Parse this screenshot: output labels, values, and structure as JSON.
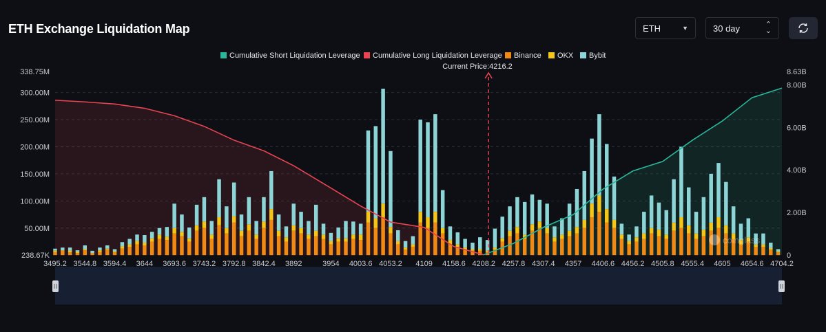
{
  "header": {
    "title": "ETH Exchange Liquidation Map",
    "coin_select": "ETH",
    "period_select": "30 day"
  },
  "icons": {
    "coin_caret": "chevron-down-icon",
    "period_caret": "sort-updown-icon",
    "refresh": "refresh-icon"
  },
  "colors": {
    "background": "#0d0f14",
    "short": "#2bb79a",
    "long": "#e84452",
    "binance": "#f08a14",
    "okx": "#f5c518",
    "bybit": "#8cd4d6"
  },
  "watermark": "coinglass",
  "chart_data": {
    "type": "bar",
    "title": "ETH Exchange Liquidation Map",
    "legend": [
      "Cumulative Short Liquidation Leverage",
      "Cumulative Long Liquidation Leverage",
      "Binance",
      "OKX",
      "Bybit"
    ],
    "current_price_label": "Current Price:4216.2",
    "current_price": 4216.2,
    "x_range": [
      3495.2,
      4704.2
    ],
    "x_ticks": [
      "3495.2",
      "3544.8",
      "3594.4",
      "3644",
      "3693.6",
      "3743.2",
      "3792.8",
      "3842.4",
      "3892",
      "3954",
      "4003.6",
      "4053.2",
      "4109",
      "4158.6",
      "4208.2",
      "4257.8",
      "4307.4",
      "4357",
      "4406.6",
      "4456.2",
      "4505.8",
      "4555.4",
      "4605",
      "4654.6",
      "4704.2"
    ],
    "y_left_ticks": [
      "238.67K",
      "50.00M",
      "100.00M",
      "150.00M",
      "200.00M",
      "250.00M",
      "300.00M",
      "338.75M"
    ],
    "y_left_values": [
      0.23867,
      50,
      100,
      150,
      200,
      250,
      300,
      338.75
    ],
    "y_left_range": [
      0.23867,
      338.75
    ],
    "y_right_ticks": [
      "0",
      "2.00B",
      "4.00B",
      "6.00B",
      "8.00B",
      "8.63B"
    ],
    "y_right_values": [
      0,
      2,
      4,
      6,
      8,
      8.63
    ],
    "y_right_range": [
      0,
      8.63
    ],
    "cumulative_long": {
      "x": [
        3495.2,
        3544.8,
        3594.4,
        3644,
        3693.6,
        3743.2,
        3792.8,
        3842.4,
        3892,
        3954,
        4003.6,
        4053.2,
        4109,
        4158.6,
        4208.2
      ],
      "y": [
        7.28,
        7.2,
        7.1,
        6.9,
        6.55,
        6.05,
        5.4,
        4.9,
        4.2,
        3.15,
        2.3,
        1.55,
        1.3,
        0.4,
        0.01
      ]
    },
    "cumulative_short": {
      "x": [
        4208.2,
        4257.8,
        4307.4,
        4357,
        4406.6,
        4456.2,
        4505.8,
        4555.4,
        4605,
        4654.6,
        4704.2
      ],
      "y": [
        0.01,
        0.55,
        1.3,
        1.9,
        3.1,
        3.95,
        4.4,
        5.4,
        6.3,
        7.4,
        7.85
      ]
    },
    "bars": [
      {
        "x": 3495.2,
        "binance": 6,
        "okx": 2,
        "bybit": 4
      },
      {
        "x": 3507.6,
        "binance": 8,
        "okx": 1,
        "bybit": 5
      },
      {
        "x": 3520,
        "binance": 5,
        "okx": 3,
        "bybit": 6
      },
      {
        "x": 3532.4,
        "binance": 4,
        "okx": 2,
        "bybit": 3
      },
      {
        "x": 3544.8,
        "binance": 9,
        "okx": 2,
        "bybit": 7
      },
      {
        "x": 3557.2,
        "binance": 3,
        "okx": 1,
        "bybit": 4
      },
      {
        "x": 3569.6,
        "binance": 6,
        "okx": 3,
        "bybit": 5
      },
      {
        "x": 3582,
        "binance": 10,
        "okx": 2,
        "bybit": 6
      },
      {
        "x": 3594.4,
        "binance": 5,
        "okx": 2,
        "bybit": 4
      },
      {
        "x": 3606.8,
        "binance": 12,
        "okx": 4,
        "bybit": 8
      },
      {
        "x": 3619.2,
        "binance": 15,
        "okx": 5,
        "bybit": 10
      },
      {
        "x": 3631.6,
        "binance": 20,
        "okx": 6,
        "bybit": 12
      },
      {
        "x": 3644,
        "binance": 18,
        "okx": 5,
        "bybit": 14
      },
      {
        "x": 3656.4,
        "binance": 25,
        "okx": 6,
        "bybit": 12
      },
      {
        "x": 3668.8,
        "binance": 30,
        "okx": 8,
        "bybit": 12
      },
      {
        "x": 3681.2,
        "binance": 28,
        "okx": 6,
        "bybit": 18
      },
      {
        "x": 3693.6,
        "binance": 40,
        "okx": 10,
        "bybit": 45
      },
      {
        "x": 3706,
        "binance": 35,
        "okx": 8,
        "bybit": 32
      },
      {
        "x": 3718.4,
        "binance": 25,
        "okx": 6,
        "bybit": 20
      },
      {
        "x": 3730.8,
        "binance": 45,
        "okx": 10,
        "bybit": 38
      },
      {
        "x": 3743.2,
        "binance": 50,
        "okx": 12,
        "bybit": 45
      },
      {
        "x": 3755.6,
        "binance": 30,
        "okx": 8,
        "bybit": 25
      },
      {
        "x": 3768,
        "binance": 55,
        "okx": 15,
        "bybit": 70
      },
      {
        "x": 3780.4,
        "binance": 40,
        "okx": 10,
        "bybit": 40
      },
      {
        "x": 3792.8,
        "binance": 60,
        "okx": 12,
        "bybit": 62
      },
      {
        "x": 3805.2,
        "binance": 35,
        "okx": 10,
        "bybit": 30
      },
      {
        "x": 3817.6,
        "binance": 45,
        "okx": 12,
        "bybit": 50
      },
      {
        "x": 3830,
        "binance": 30,
        "okx": 8,
        "bybit": 25
      },
      {
        "x": 3842.4,
        "binance": 50,
        "okx": 12,
        "bybit": 45
      },
      {
        "x": 3854.8,
        "binance": 65,
        "okx": 20,
        "bybit": 70
      },
      {
        "x": 3867.2,
        "binance": 35,
        "okx": 10,
        "bybit": 30
      },
      {
        "x": 3879.6,
        "binance": 25,
        "okx": 8,
        "bybit": 20
      },
      {
        "x": 3892,
        "binance": 45,
        "okx": 10,
        "bybit": 40
      },
      {
        "x": 3904.4,
        "binance": 40,
        "okx": 10,
        "bybit": 30
      },
      {
        "x": 3916.8,
        "binance": 30,
        "okx": 8,
        "bybit": 25
      },
      {
        "x": 3929.2,
        "binance": 35,
        "okx": 10,
        "bybit": 48
      },
      {
        "x": 3941.6,
        "binance": 30,
        "okx": 8,
        "bybit": 20
      },
      {
        "x": 3954,
        "binance": 20,
        "okx": 6,
        "bybit": 15
      },
      {
        "x": 3966.4,
        "binance": 25,
        "okx": 6,
        "bybit": 20
      },
      {
        "x": 3978.8,
        "binance": 25,
        "okx": 6,
        "bybit": 32
      },
      {
        "x": 3991.2,
        "binance": 30,
        "okx": 8,
        "bybit": 24
      },
      {
        "x": 4003.6,
        "binance": 28,
        "okx": 10,
        "bybit": 20
      },
      {
        "x": 4016,
        "binance": 60,
        "okx": 20,
        "bybit": 150
      },
      {
        "x": 4028.4,
        "binance": 50,
        "okx": 18,
        "bybit": 170
      },
      {
        "x": 4040.8,
        "binance": 70,
        "okx": 25,
        "bybit": 212
      },
      {
        "x": 4053.2,
        "binance": 40,
        "okx": 12,
        "bybit": 140
      },
      {
        "x": 4065.6,
        "binance": 20,
        "okx": 6,
        "bybit": 20
      },
      {
        "x": 4078,
        "binance": 10,
        "okx": 4,
        "bybit": 12
      },
      {
        "x": 4090.4,
        "binance": 15,
        "okx": 5,
        "bybit": 15
      },
      {
        "x": 4102.8,
        "binance": 60,
        "okx": 20,
        "bybit": 170
      },
      {
        "x": 4115.2,
        "binance": 50,
        "okx": 20,
        "bybit": 175
      },
      {
        "x": 4127.6,
        "binance": 60,
        "okx": 20,
        "bybit": 180
      },
      {
        "x": 4140,
        "binance": 40,
        "okx": 10,
        "bybit": 70
      },
      {
        "x": 4152.4,
        "binance": 20,
        "okx": 8,
        "bybit": 25
      },
      {
        "x": 4164.8,
        "binance": 15,
        "okx": 5,
        "bybit": 22
      },
      {
        "x": 4177.2,
        "binance": 10,
        "okx": 4,
        "bybit": 16
      },
      {
        "x": 4189.6,
        "binance": 8,
        "okx": 3,
        "bybit": 12
      },
      {
        "x": 4202,
        "binance": 8,
        "okx": 3,
        "bybit": 22
      },
      {
        "x": 4214.4,
        "binance": 6,
        "okx": 2,
        "bybit": 20
      },
      {
        "x": 4226.8,
        "binance": 10,
        "okx": 4,
        "bybit": 35
      },
      {
        "x": 4239.2,
        "binance": 25,
        "okx": 6,
        "bybit": 40
      },
      {
        "x": 4251.6,
        "binance": 35,
        "okx": 10,
        "bybit": 45
      },
      {
        "x": 4264,
        "binance": 40,
        "okx": 12,
        "bybit": 55
      },
      {
        "x": 4276.4,
        "binance": 30,
        "okx": 8,
        "bybit": 60
      },
      {
        "x": 4288.8,
        "binance": 45,
        "okx": 12,
        "bybit": 55
      },
      {
        "x": 4301.2,
        "binance": 50,
        "okx": 12,
        "bybit": 40
      },
      {
        "x": 4313.6,
        "binance": 40,
        "okx": 10,
        "bybit": 45
      },
      {
        "x": 4326,
        "binance": 25,
        "okx": 8,
        "bybit": 20
      },
      {
        "x": 4338.4,
        "binance": 30,
        "okx": 8,
        "bybit": 30
      },
      {
        "x": 4350.8,
        "binance": 35,
        "okx": 10,
        "bybit": 50
      },
      {
        "x": 4363.2,
        "binance": 40,
        "okx": 12,
        "bybit": 70
      },
      {
        "x": 4375.6,
        "binance": 50,
        "okx": 15,
        "bybit": 90
      },
      {
        "x": 4388,
        "binance": 70,
        "okx": 25,
        "bybit": 120
      },
      {
        "x": 4400.4,
        "binance": 80,
        "okx": 30,
        "bybit": 150
      },
      {
        "x": 4412.8,
        "binance": 60,
        "okx": 25,
        "bybit": 120
      },
      {
        "x": 4425.2,
        "binance": 50,
        "okx": 15,
        "bybit": 80
      },
      {
        "x": 4437.6,
        "binance": 30,
        "okx": 8,
        "bybit": 20
      },
      {
        "x": 4450,
        "binance": 20,
        "okx": 6,
        "bybit": 12
      },
      {
        "x": 4462.4,
        "binance": 25,
        "okx": 8,
        "bybit": 20
      },
      {
        "x": 4474.8,
        "binance": 30,
        "okx": 10,
        "bybit": 40
      },
      {
        "x": 4487.2,
        "binance": 40,
        "okx": 10,
        "bybit": 60
      },
      {
        "x": 4499.6,
        "binance": 35,
        "okx": 12,
        "bybit": 50
      },
      {
        "x": 4512,
        "binance": 30,
        "okx": 8,
        "bybit": 45
      },
      {
        "x": 4524.4,
        "binance": 45,
        "okx": 15,
        "bybit": 80
      },
      {
        "x": 4536.8,
        "binance": 50,
        "okx": 20,
        "bybit": 130
      },
      {
        "x": 4549.2,
        "binance": 40,
        "okx": 15,
        "bybit": 70
      },
      {
        "x": 4561.6,
        "binance": 30,
        "okx": 10,
        "bybit": 40
      },
      {
        "x": 4574,
        "binance": 35,
        "okx": 12,
        "bybit": 60
      },
      {
        "x": 4586.4,
        "binance": 45,
        "okx": 15,
        "bybit": 90
      },
      {
        "x": 4598.8,
        "binance": 50,
        "okx": 20,
        "bybit": 100
      },
      {
        "x": 4611.2,
        "binance": 40,
        "okx": 15,
        "bybit": 80
      },
      {
        "x": 4623.6,
        "binance": 30,
        "okx": 10,
        "bybit": 50
      },
      {
        "x": 4636,
        "binance": 20,
        "okx": 8,
        "bybit": 30
      },
      {
        "x": 4648.4,
        "binance": 25,
        "okx": 8,
        "bybit": 35
      },
      {
        "x": 4660.8,
        "binance": 15,
        "okx": 5,
        "bybit": 20
      },
      {
        "x": 4673.2,
        "binance": 15,
        "okx": 5,
        "bybit": 20
      },
      {
        "x": 4685.6,
        "binance": 10,
        "okx": 3,
        "bybit": 10
      },
      {
        "x": 4698,
        "binance": 5,
        "okx": 2,
        "bybit": 4
      }
    ]
  }
}
